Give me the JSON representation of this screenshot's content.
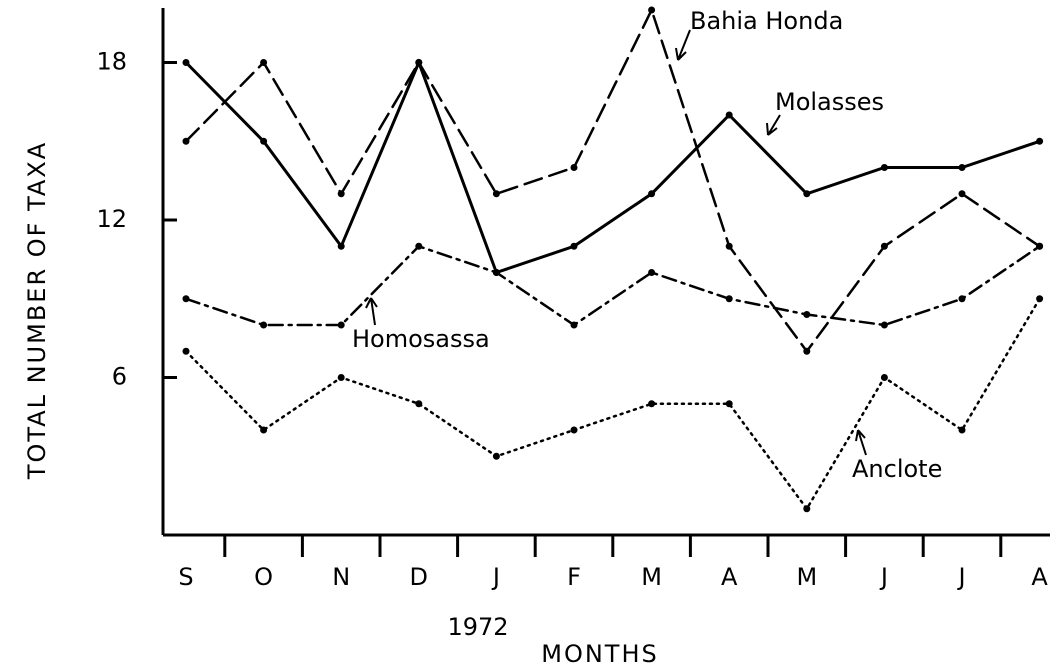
{
  "chart_data": {
    "type": "line",
    "ylabel": "TOTAL NUMBER OF TAXA",
    "xlabel": "MONTHS",
    "annotation": "1972",
    "categories": [
      "S",
      "O",
      "N",
      "D",
      "J",
      "F",
      "M",
      "A",
      "M",
      "J",
      "J",
      "A"
    ],
    "series": [
      {
        "name": "Bahia Honda",
        "color": "#000000",
        "linestyle": "dashed",
        "values": [
          15,
          18,
          13,
          18,
          13,
          14,
          20,
          11,
          7,
          11,
          13,
          11
        ]
      },
      {
        "name": "Molasses",
        "color": "#000000",
        "linestyle": "solid",
        "values": [
          18,
          15,
          11,
          18,
          10,
          11,
          13,
          16,
          13,
          14,
          14,
          15
        ]
      },
      {
        "name": "Homosassa",
        "color": "#000000",
        "linestyle": "dashdot",
        "values": [
          9,
          8,
          8,
          11,
          10,
          8,
          10,
          9,
          8.4,
          8,
          9,
          11
        ]
      },
      {
        "name": "Anclote",
        "color": "#000000",
        "linestyle": "dotted",
        "values": [
          7,
          4,
          6,
          5,
          3,
          4,
          5,
          5,
          1,
          6,
          4,
          9
        ]
      }
    ],
    "ylim": [
      0,
      20
    ],
    "yticks": [
      6,
      12,
      18
    ],
    "grid": false
  }
}
